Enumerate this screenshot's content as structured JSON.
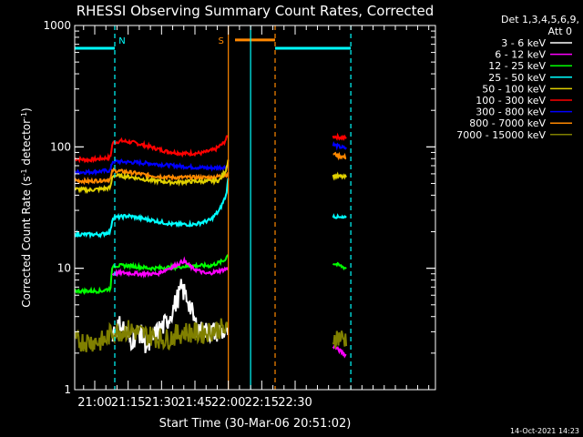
{
  "chart_data": {
    "type": "line",
    "title": "RHESSI Observing Summary Count Rates, Corrected",
    "xlabel": "Start Time (30-Mar-06 20:51:02)",
    "ylabel_main": "Corrected Count Rate (s",
    "ylabel_sup1": "-1",
    "ylabel_mid": " detector",
    "ylabel_sup2": "-1",
    "ylabel_end": ")",
    "yscale": "log",
    "ylim": [
      1,
      1000
    ],
    "xlim_minutes": [
      51,
      213
    ],
    "x_ticks": [
      {
        "m": 60,
        "label": "21:00"
      },
      {
        "m": 75,
        "label": "21:15"
      },
      {
        "m": 90,
        "label": "21:30"
      },
      {
        "m": 105,
        "label": "21:45"
      },
      {
        "m": 120,
        "label": "22:00"
      },
      {
        "m": 135,
        "label": "22:15"
      },
      {
        "m": 150,
        "label": "22:30"
      }
    ],
    "y_ticks": [
      {
        "v": 1,
        "label": "1"
      },
      {
        "v": 10,
        "label": "10"
      },
      {
        "v": 100,
        "label": "100"
      },
      {
        "v": 1000,
        "label": "1000"
      }
    ],
    "legend_title_1": "Det 1,3,4,5,6,9,",
    "legend_title_2": "Att 0",
    "legend_position": "right",
    "series": [
      {
        "name": "3 - 6 keV",
        "color": "#ffffff"
      },
      {
        "name": "6 - 12 keV",
        "color": "#ff00ff"
      },
      {
        "name": "12 - 25 keV",
        "color": "#00ff00"
      },
      {
        "name": "25 - 50 keV",
        "color": "#00ffff"
      },
      {
        "name": "50 - 100 keV",
        "color": "#e0d000"
      },
      {
        "name": "100 - 300 keV",
        "color": "#ff0000"
      },
      {
        "name": "300 - 800 keV",
        "color": "#0000ff"
      },
      {
        "name": "800 - 7000 keV",
        "color": "#ff8800"
      },
      {
        "name": "7000 - 15000 keV",
        "color": "#808000"
      }
    ],
    "segments": [
      {
        "series": 5,
        "points": [
          [
            51,
            80
          ],
          [
            57,
            78
          ],
          [
            63,
            80
          ],
          [
            67,
            82
          ],
          [
            68,
            108
          ],
          [
            72,
            112
          ],
          [
            78,
            108
          ],
          [
            85,
            100
          ],
          [
            92,
            92
          ],
          [
            100,
            88
          ],
          [
            108,
            89
          ],
          [
            114,
            95
          ],
          [
            118,
            108
          ],
          [
            120,
            125
          ]
        ]
      },
      {
        "series": 5,
        "points": [
          [
            167,
            122
          ],
          [
            170,
            120
          ],
          [
            173,
            118
          ]
        ]
      },
      {
        "series": 6,
        "points": [
          [
            51,
            62
          ],
          [
            57,
            62
          ],
          [
            63,
            63
          ],
          [
            67,
            64
          ],
          [
            68,
            76
          ],
          [
            75,
            75
          ],
          [
            85,
            73
          ],
          [
            95,
            70
          ],
          [
            105,
            68
          ],
          [
            112,
            67
          ],
          [
            118,
            68
          ],
          [
            120,
            68
          ]
        ]
      },
      {
        "series": 6,
        "points": [
          [
            167,
            105
          ],
          [
            170,
            100
          ],
          [
            173,
            97
          ]
        ]
      },
      {
        "series": 7,
        "points": [
          [
            51,
            53
          ],
          [
            57,
            52
          ],
          [
            63,
            53
          ],
          [
            67,
            54
          ],
          [
            68,
            64
          ],
          [
            75,
            62
          ],
          [
            85,
            58
          ],
          [
            95,
            56
          ],
          [
            105,
            56
          ],
          [
            112,
            56
          ],
          [
            118,
            58
          ],
          [
            120,
            60
          ]
        ]
      },
      {
        "series": 7,
        "points": [
          [
            167,
            88
          ],
          [
            170,
            84
          ],
          [
            173,
            82
          ]
        ]
      },
      {
        "series": 4,
        "points": [
          [
            51,
            45
          ],
          [
            57,
            44
          ],
          [
            63,
            45
          ],
          [
            67,
            46
          ],
          [
            68,
            58
          ],
          [
            75,
            57
          ],
          [
            85,
            53
          ],
          [
            95,
            51
          ],
          [
            105,
            52
          ],
          [
            112,
            52
          ],
          [
            116,
            53
          ],
          [
            119,
            65
          ],
          [
            120,
            80
          ]
        ]
      },
      {
        "series": 4,
        "points": [
          [
            167,
            58
          ],
          [
            170,
            57
          ],
          [
            173,
            56
          ]
        ]
      },
      {
        "series": 3,
        "points": [
          [
            51,
            19
          ],
          [
            57,
            19
          ],
          [
            63,
            19
          ],
          [
            67,
            20
          ],
          [
            68,
            26
          ],
          [
            75,
            27
          ],
          [
            85,
            25
          ],
          [
            95,
            23
          ],
          [
            105,
            23
          ],
          [
            112,
            25
          ],
          [
            116,
            30
          ],
          [
            119,
            40
          ],
          [
            120,
            55
          ]
        ]
      },
      {
        "series": 3,
        "points": [
          [
            167,
            27
          ],
          [
            170,
            26
          ],
          [
            173,
            26
          ]
        ]
      },
      {
        "series": 2,
        "points": [
          [
            51,
            6.5
          ],
          [
            57,
            6.5
          ],
          [
            63,
            6.5
          ],
          [
            67,
            6.8
          ],
          [
            68,
            10.5
          ],
          [
            75,
            10.5
          ],
          [
            85,
            10
          ],
          [
            95,
            10.2
          ],
          [
            105,
            10.5
          ],
          [
            112,
            10.5
          ],
          [
            118,
            11.5
          ],
          [
            120,
            13
          ]
        ]
      },
      {
        "series": 2,
        "points": [
          [
            167,
            11
          ],
          [
            170,
            10.5
          ],
          [
            173,
            10
          ]
        ]
      },
      {
        "series": 1,
        "points": [
          [
            68,
            9
          ],
          [
            72,
            9.2
          ],
          [
            80,
            9
          ],
          [
            88,
            9
          ],
          [
            96,
            10.5
          ],
          [
            100,
            11.5
          ],
          [
            104,
            10
          ],
          [
            110,
            9
          ],
          [
            116,
            9.5
          ],
          [
            120,
            10
          ]
        ]
      },
      {
        "series": 1,
        "points": [
          [
            167,
            2.3
          ],
          [
            170,
            2.1
          ],
          [
            173,
            1.9
          ]
        ]
      },
      {
        "series": 0,
        "points": [
          [
            68,
            3
          ],
          [
            72,
            3.5
          ],
          [
            76,
            2.5
          ],
          [
            80,
            3
          ],
          [
            84,
            2.2
          ],
          [
            88,
            3
          ],
          [
            92,
            3.5
          ],
          [
            96,
            5
          ],
          [
            99,
            6.8
          ],
          [
            102,
            5.5
          ],
          [
            105,
            3.5
          ],
          [
            108,
            3
          ],
          [
            114,
            3
          ],
          [
            120,
            3
          ]
        ]
      },
      {
        "series": 8,
        "points": [
          [
            51,
            2.5
          ],
          [
            58,
            2.5
          ],
          [
            64,
            2.5
          ],
          [
            68,
            3
          ],
          [
            76,
            3.1
          ],
          [
            84,
            2.8
          ],
          [
            92,
            2.6
          ],
          [
            100,
            3
          ],
          [
            108,
            2.9
          ],
          [
            116,
            3.2
          ],
          [
            120,
            3
          ]
        ]
      },
      {
        "series": 8,
        "points": [
          [
            167,
            2.7
          ],
          [
            170,
            2.7
          ],
          [
            173,
            2.6
          ]
        ]
      }
    ],
    "attenuator_levels": [
      {
        "series": 3,
        "x_start": 51,
        "x_end": 69,
        "value": 650
      },
      {
        "series": 7,
        "x_start": 123,
        "x_end": 141,
        "value": 760
      },
      {
        "series": 3,
        "x_start": 141,
        "x_end": 175,
        "value": 650
      }
    ],
    "vertical_markers": [
      {
        "m": 69,
        "color": "#00ffff",
        "style": "dashed",
        "label": "N"
      },
      {
        "m": 120,
        "color": "#ff8800",
        "style": "solid",
        "label": "S"
      },
      {
        "m": 130,
        "color": "#00ffff",
        "style": "solid",
        "label": ""
      },
      {
        "m": 141,
        "color": "#ff8800",
        "style": "dashed",
        "label": ""
      },
      {
        "m": 175,
        "color": "#00ffff",
        "style": "dashed",
        "label": ""
      }
    ],
    "footer_timestamp": "14-Oct-2021 14:23"
  }
}
